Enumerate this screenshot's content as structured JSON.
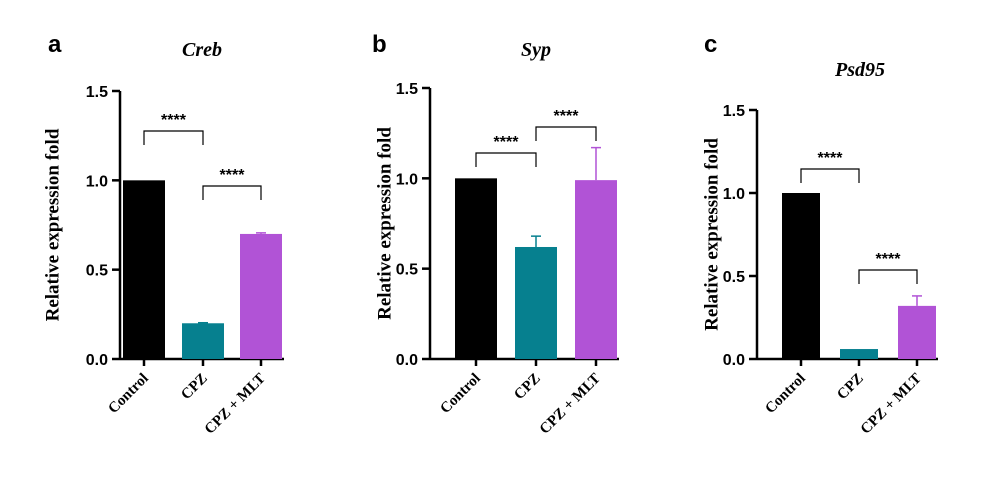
{
  "chart_data": [
    {
      "type": "bar",
      "panel": "a",
      "title": "Creb",
      "ylabel": "Relative expression fold",
      "ylim": [
        0,
        1.5
      ],
      "yticks": [
        "0.0",
        "0.5",
        "1.0",
        "1.5"
      ],
      "categories": [
        "Control",
        "CPZ",
        "CPZ + MLT"
      ],
      "values": [
        1.0,
        0.2,
        0.7
      ],
      "errors": [
        0,
        0.003,
        0.006
      ],
      "colors": [
        "#000000",
        "#06808f",
        "#b153d6"
      ],
      "comparisons": [
        {
          "from": 0,
          "to": 1,
          "label": "****"
        },
        {
          "from": 1,
          "to": 2,
          "label": "****"
        }
      ]
    },
    {
      "type": "bar",
      "panel": "b",
      "title": "Syp",
      "ylabel": "Relative expression fold",
      "ylim": [
        0,
        1.5
      ],
      "yticks": [
        "0.0",
        "0.5",
        "1.0",
        "1.5"
      ],
      "categories": [
        "Control",
        "CPZ",
        "CPZ + MLT"
      ],
      "values": [
        1.0,
        0.62,
        0.99
      ],
      "errors": [
        0,
        0.06,
        0.18
      ],
      "colors": [
        "#000000",
        "#06808f",
        "#b153d6"
      ],
      "comparisons": [
        {
          "from": 0,
          "to": 1,
          "label": "****"
        },
        {
          "from": 1,
          "to": 2,
          "label": "****"
        }
      ]
    },
    {
      "type": "bar",
      "panel": "c",
      "title": "Psd95",
      "ylabel": "Relative expression fold",
      "ylim": [
        0,
        1.5
      ],
      "yticks": [
        "0.0",
        "0.5",
        "1.0",
        "1.5"
      ],
      "categories": [
        "Control",
        "CPZ",
        "CPZ + MLT"
      ],
      "values": [
        1.0,
        0.06,
        0.32
      ],
      "errors": [
        0,
        0,
        0.06
      ],
      "colors": [
        "#000000",
        "#06808f",
        "#b153d6"
      ],
      "comparisons": [
        {
          "from": 0,
          "to": 1,
          "label": "****"
        },
        {
          "from": 1,
          "to": 2,
          "label": "****"
        }
      ]
    }
  ]
}
